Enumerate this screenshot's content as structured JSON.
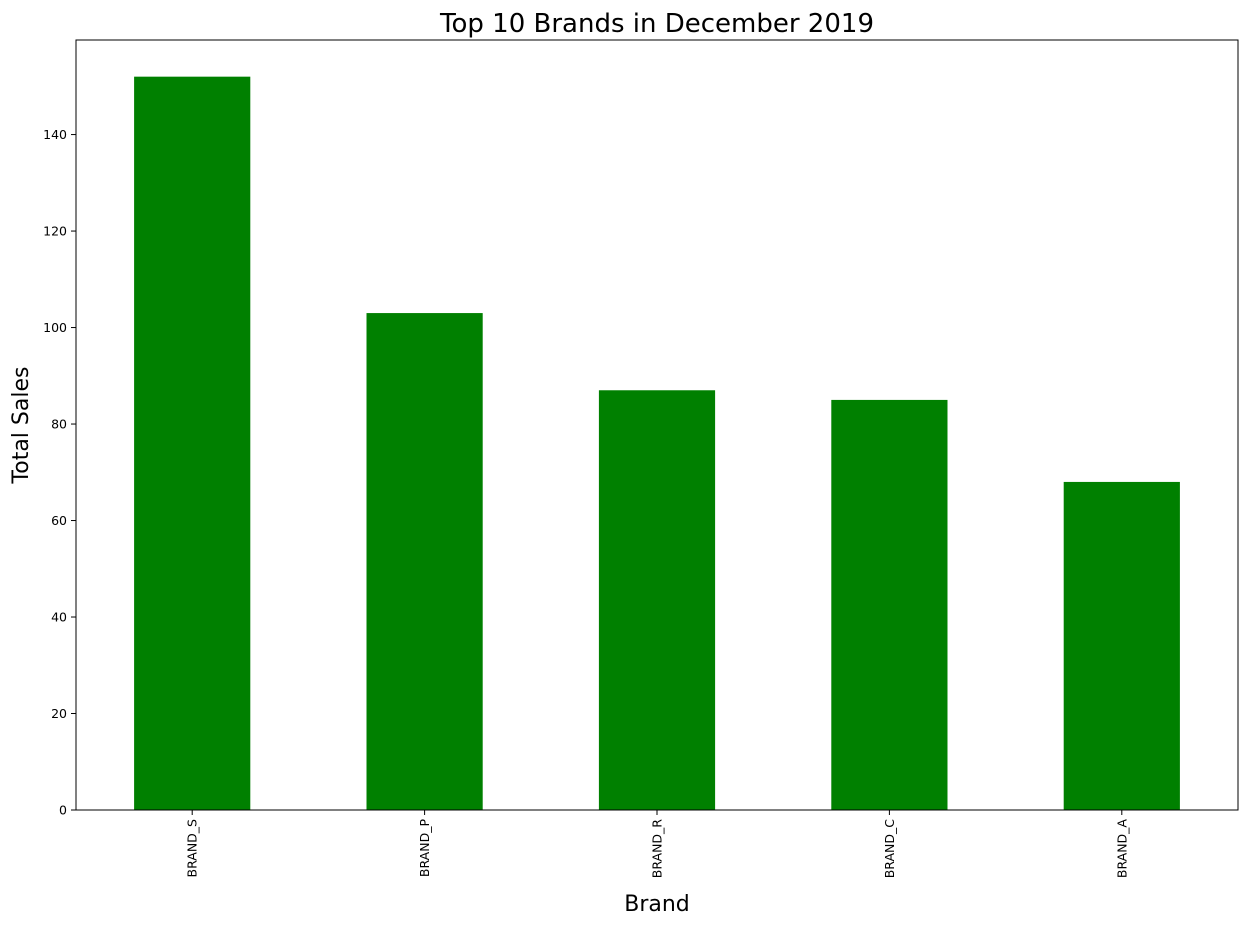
{
  "chart_data": {
    "type": "bar",
    "title": "Top 10 Brands in December 2019",
    "xlabel": "Brand",
    "ylabel": "Total Sales",
    "categories": [
      "BRAND_S",
      "BRAND_P",
      "BRAND_R",
      "BRAND_C",
      "BRAND_A"
    ],
    "values": [
      152,
      103,
      87,
      85,
      68
    ],
    "ylim": [
      0,
      159.6
    ],
    "yticks": [
      0,
      20,
      40,
      60,
      80,
      100,
      120,
      140
    ],
    "bar_color": "#008000",
    "grid": false,
    "legend": "none"
  }
}
